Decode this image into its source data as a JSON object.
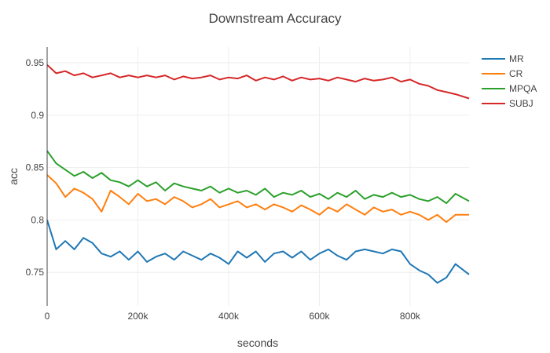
{
  "chart_data": {
    "type": "line",
    "title": "Downstream Accuracy",
    "xlabel": "seconds",
    "ylabel": "acc",
    "xlim": [
      0,
      930000
    ],
    "ylim": [
      0.718,
      0.965
    ],
    "x_ticks": [
      0,
      200000,
      400000,
      600000,
      800000
    ],
    "x_tick_labels": [
      "0",
      "200k",
      "400k",
      "600k",
      "800k"
    ],
    "y_ticks": [
      0.75,
      0.8,
      0.85,
      0.9,
      0.95
    ],
    "y_tick_labels": [
      "0.75",
      "0.8",
      "0.85",
      "0.9",
      "0.95"
    ],
    "grid": true,
    "legend_position": "top-right",
    "series": [
      {
        "name": "MR",
        "color": "#1f77b4",
        "x": [
          0,
          20000,
          40000,
          60000,
          80000,
          100000,
          120000,
          140000,
          160000,
          180000,
          200000,
          220000,
          240000,
          260000,
          280000,
          300000,
          320000,
          340000,
          360000,
          380000,
          400000,
          420000,
          440000,
          460000,
          480000,
          500000,
          520000,
          540000,
          560000,
          580000,
          600000,
          620000,
          640000,
          660000,
          680000,
          700000,
          720000,
          740000,
          760000,
          780000,
          800000,
          820000,
          840000,
          860000,
          880000,
          900000,
          930000
        ],
        "values": [
          0.8,
          0.772,
          0.78,
          0.772,
          0.783,
          0.778,
          0.768,
          0.765,
          0.77,
          0.762,
          0.77,
          0.76,
          0.765,
          0.768,
          0.762,
          0.77,
          0.766,
          0.762,
          0.768,
          0.764,
          0.758,
          0.77,
          0.764,
          0.77,
          0.76,
          0.768,
          0.77,
          0.764,
          0.77,
          0.762,
          0.768,
          0.772,
          0.766,
          0.762,
          0.77,
          0.772,
          0.77,
          0.768,
          0.772,
          0.77,
          0.758,
          0.752,
          0.748,
          0.74,
          0.745,
          0.758,
          0.748
        ]
      },
      {
        "name": "CR",
        "color": "#ff7f0e",
        "x": [
          0,
          20000,
          40000,
          60000,
          80000,
          100000,
          120000,
          140000,
          160000,
          180000,
          200000,
          220000,
          240000,
          260000,
          280000,
          300000,
          320000,
          340000,
          360000,
          380000,
          400000,
          420000,
          440000,
          460000,
          480000,
          500000,
          520000,
          540000,
          560000,
          580000,
          600000,
          620000,
          640000,
          660000,
          680000,
          700000,
          720000,
          740000,
          760000,
          780000,
          800000,
          820000,
          840000,
          860000,
          880000,
          900000,
          930000
        ],
        "values": [
          0.843,
          0.835,
          0.822,
          0.83,
          0.826,
          0.82,
          0.808,
          0.828,
          0.822,
          0.815,
          0.825,
          0.818,
          0.82,
          0.815,
          0.822,
          0.818,
          0.812,
          0.815,
          0.82,
          0.812,
          0.815,
          0.818,
          0.812,
          0.815,
          0.81,
          0.815,
          0.812,
          0.808,
          0.814,
          0.81,
          0.805,
          0.812,
          0.808,
          0.815,
          0.81,
          0.805,
          0.812,
          0.808,
          0.81,
          0.805,
          0.808,
          0.805,
          0.8,
          0.805,
          0.798,
          0.805,
          0.805
        ]
      },
      {
        "name": "MPQA",
        "color": "#2ca02c",
        "x": [
          0,
          20000,
          40000,
          60000,
          80000,
          100000,
          120000,
          140000,
          160000,
          180000,
          200000,
          220000,
          240000,
          260000,
          280000,
          300000,
          320000,
          340000,
          360000,
          380000,
          400000,
          420000,
          440000,
          460000,
          480000,
          500000,
          520000,
          540000,
          560000,
          580000,
          600000,
          620000,
          640000,
          660000,
          680000,
          700000,
          720000,
          740000,
          760000,
          780000,
          800000,
          820000,
          840000,
          860000,
          880000,
          900000,
          930000
        ],
        "values": [
          0.866,
          0.854,
          0.848,
          0.842,
          0.846,
          0.84,
          0.845,
          0.838,
          0.836,
          0.832,
          0.838,
          0.832,
          0.836,
          0.828,
          0.835,
          0.832,
          0.83,
          0.828,
          0.832,
          0.826,
          0.83,
          0.826,
          0.828,
          0.824,
          0.83,
          0.822,
          0.826,
          0.824,
          0.828,
          0.822,
          0.825,
          0.82,
          0.826,
          0.822,
          0.828,
          0.82,
          0.824,
          0.822,
          0.826,
          0.822,
          0.824,
          0.82,
          0.818,
          0.822,
          0.816,
          0.825,
          0.818
        ]
      },
      {
        "name": "SUBJ",
        "color": "#d62728",
        "x": [
          0,
          20000,
          40000,
          60000,
          80000,
          100000,
          120000,
          140000,
          160000,
          180000,
          200000,
          220000,
          240000,
          260000,
          280000,
          300000,
          320000,
          340000,
          360000,
          380000,
          400000,
          420000,
          440000,
          460000,
          480000,
          500000,
          520000,
          540000,
          560000,
          580000,
          600000,
          620000,
          640000,
          660000,
          680000,
          700000,
          720000,
          740000,
          760000,
          780000,
          800000,
          820000,
          840000,
          860000,
          880000,
          900000,
          930000
        ],
        "values": [
          0.948,
          0.94,
          0.942,
          0.938,
          0.94,
          0.936,
          0.938,
          0.94,
          0.936,
          0.938,
          0.936,
          0.938,
          0.936,
          0.938,
          0.934,
          0.937,
          0.935,
          0.936,
          0.938,
          0.934,
          0.936,
          0.935,
          0.938,
          0.933,
          0.936,
          0.934,
          0.937,
          0.933,
          0.936,
          0.934,
          0.935,
          0.933,
          0.936,
          0.934,
          0.932,
          0.935,
          0.933,
          0.934,
          0.936,
          0.932,
          0.934,
          0.93,
          0.928,
          0.924,
          0.922,
          0.92,
          0.916
        ]
      }
    ]
  }
}
